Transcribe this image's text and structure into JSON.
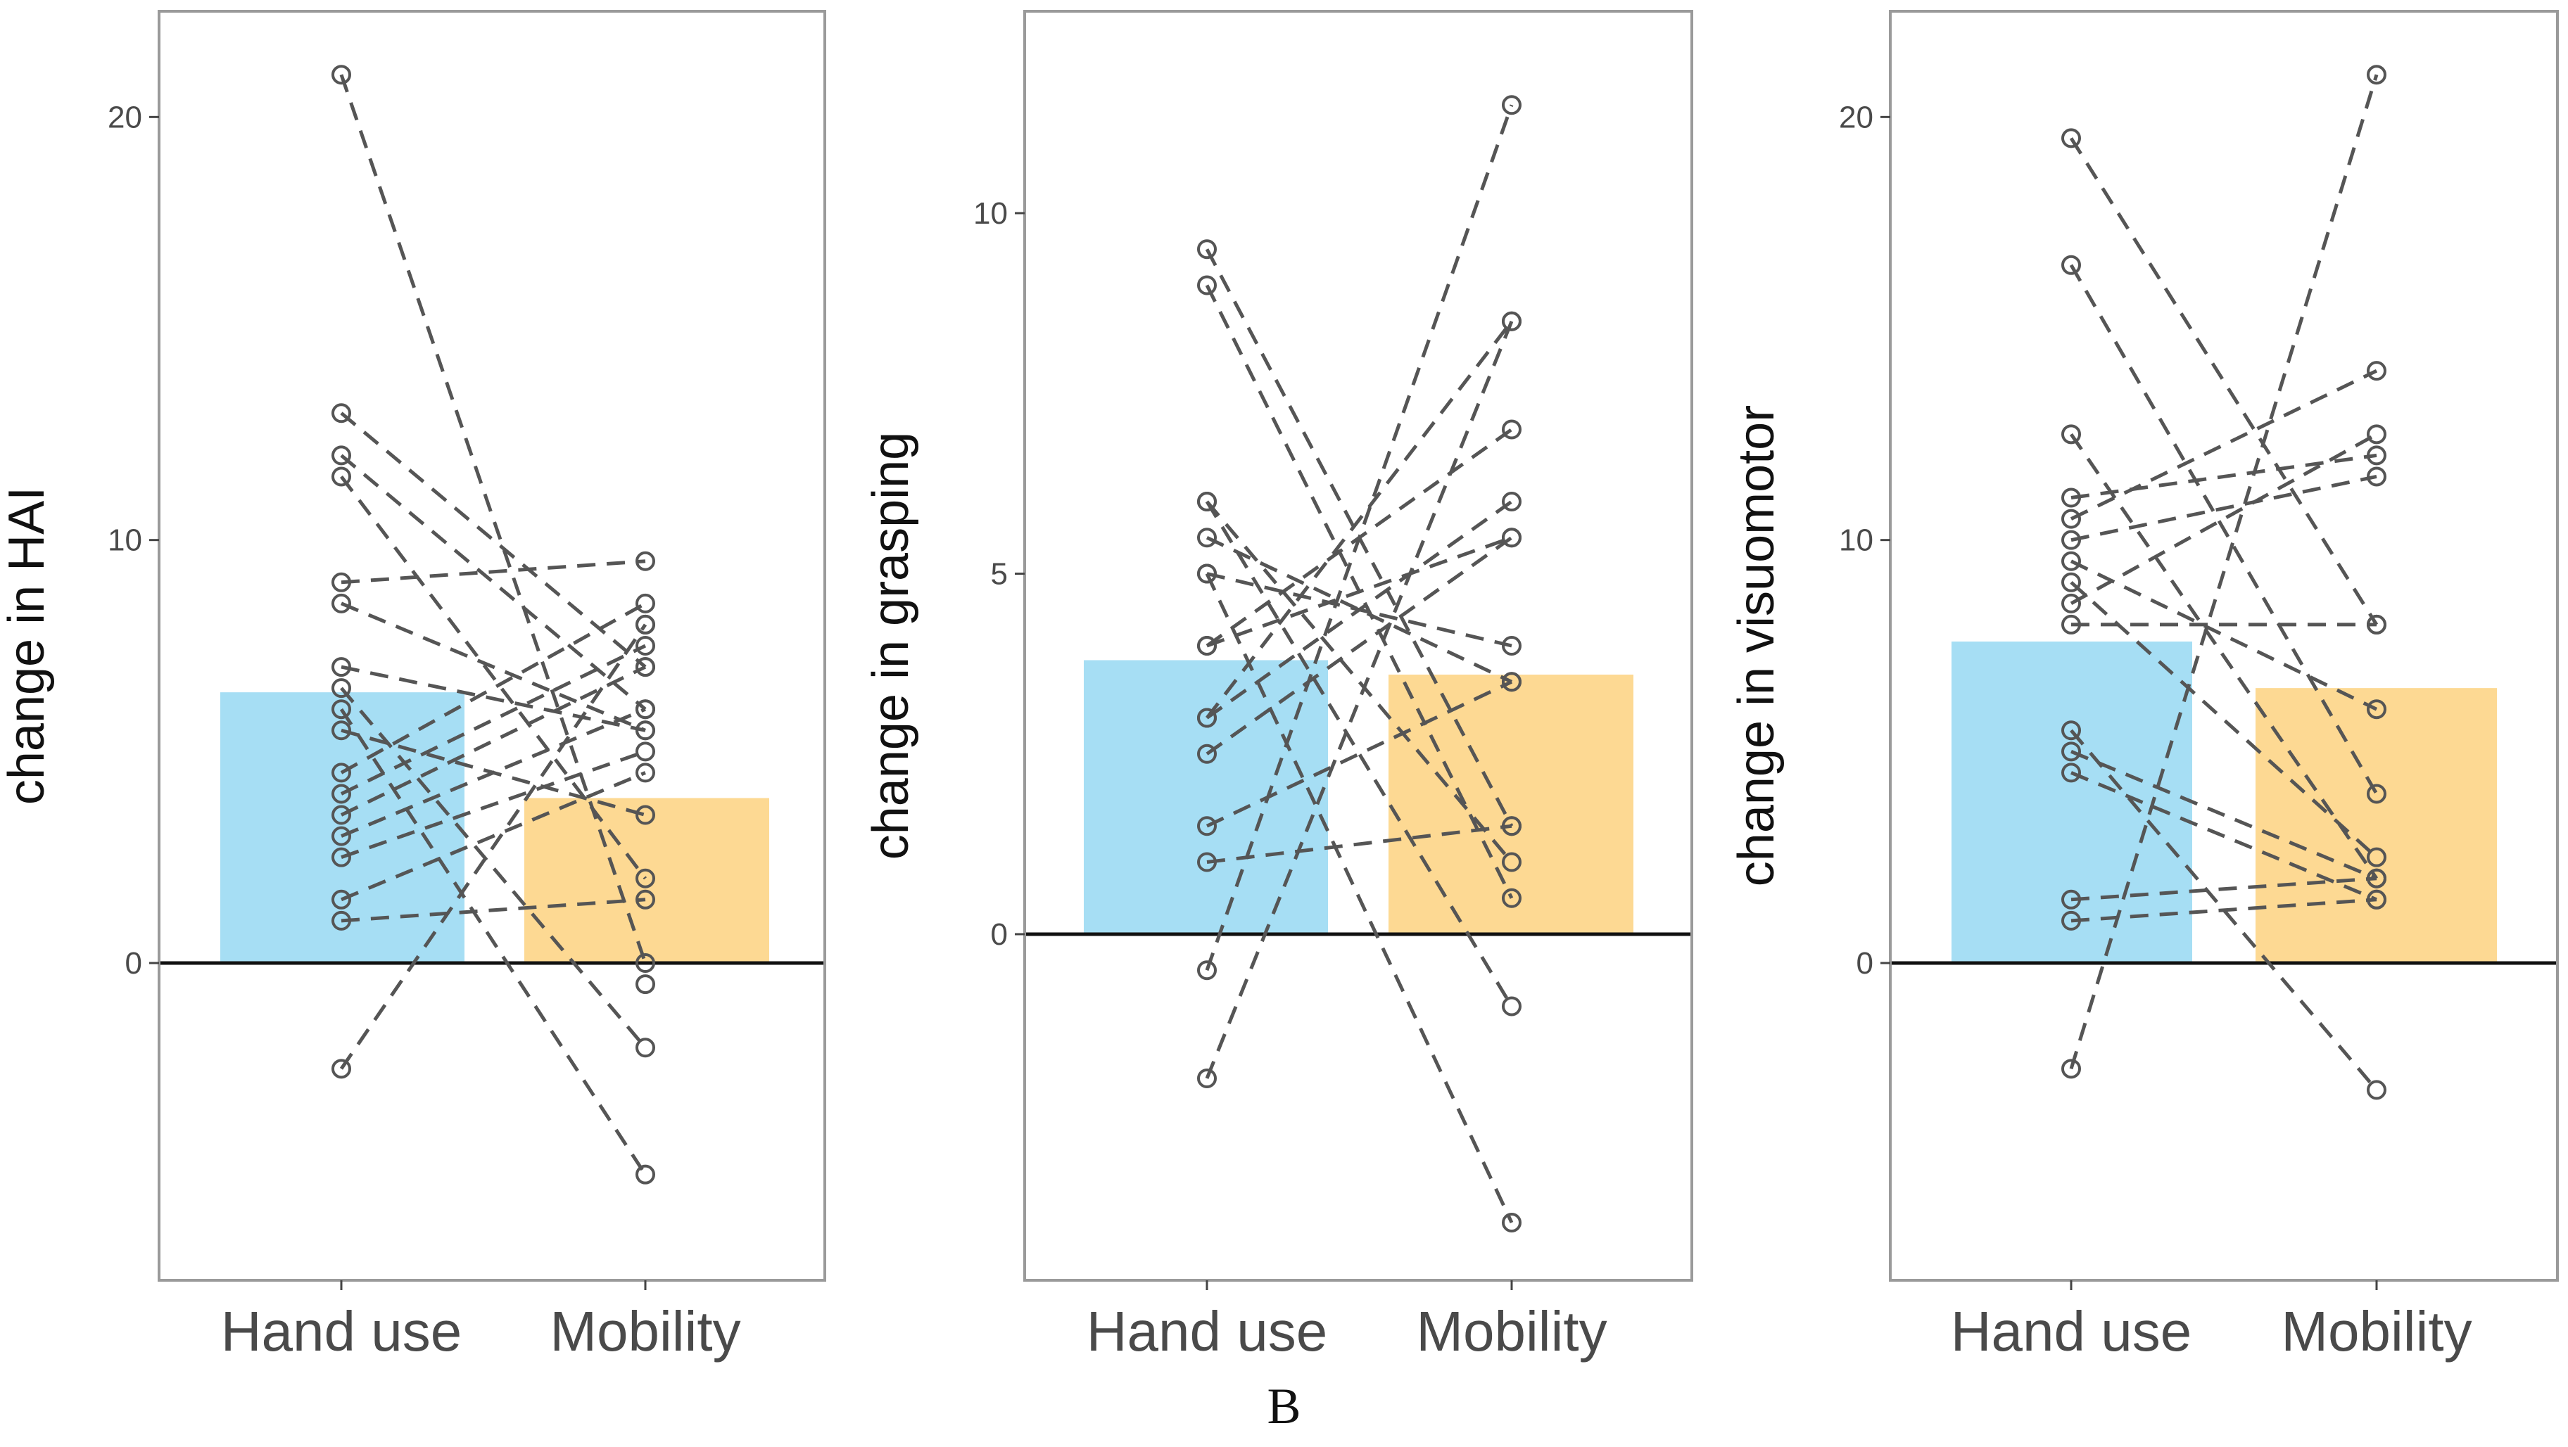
{
  "caption": "B",
  "colors": {
    "bar_hand_use": "#a6def4",
    "bar_mobility": "#fdd993",
    "points": "#555555",
    "zero_line": "#111111"
  },
  "chart_data": [
    {
      "type": "bar",
      "ylabel": "change in HAI",
      "categories": [
        "Hand use",
        "Mobility"
      ],
      "bar_colors": [
        "#a6def4",
        "#fdd993"
      ],
      "values": [
        6.4,
        3.9
      ],
      "ylim": [
        -7.5,
        22.5
      ],
      "yticks": [
        0,
        10,
        20
      ],
      "pairs": [
        [
          21,
          0
        ],
        [
          13,
          7
        ],
        [
          12,
          6
        ],
        [
          11.5,
          2
        ],
        [
          9,
          9.5
        ],
        [
          8.5,
          5.5
        ],
        [
          7,
          5.5
        ],
        [
          6.5,
          -2
        ],
        [
          6,
          -5
        ],
        [
          5.5,
          3.5
        ],
        [
          4.5,
          8.5
        ],
        [
          4,
          7.5
        ],
        [
          3.5,
          7
        ],
        [
          3,
          6
        ],
        [
          2.5,
          5
        ],
        [
          1.5,
          4.5
        ],
        [
          1,
          1.5
        ],
        [
          -2.5,
          8
        ]
      ],
      "extra_mobility_points": [
        -0.5,
        8
      ]
    },
    {
      "type": "bar",
      "ylabel": "change in grasping",
      "categories": [
        "Hand use",
        "Mobility"
      ],
      "bar_colors": [
        "#a6def4",
        "#fdd993"
      ],
      "values": [
        3.8,
        3.6
      ],
      "ylim": [
        -4.8,
        12.8
      ],
      "yticks": [
        0,
        5,
        10
      ],
      "pairs": [
        [
          9.5,
          1.5
        ],
        [
          9,
          0.5
        ],
        [
          6,
          -1
        ],
        [
          6,
          1
        ],
        [
          5.5,
          3.5
        ],
        [
          5,
          4
        ],
        [
          5,
          -4
        ],
        [
          4,
          5.5
        ],
        [
          4,
          7
        ],
        [
          3,
          6
        ],
        [
          3,
          8.5
        ],
        [
          2.5,
          5.5
        ],
        [
          1.5,
          3.5
        ],
        [
          1,
          1.5
        ],
        [
          -0.5,
          11.5
        ],
        [
          -2,
          8.5
        ]
      ]
    },
    {
      "type": "bar",
      "ylabel": "change in visuomotor",
      "categories": [
        "Hand use",
        "Mobility"
      ],
      "bar_colors": [
        "#a6def4",
        "#fdd993"
      ],
      "values": [
        7.6,
        6.5
      ],
      "ylim": [
        -7.5,
        22.5
      ],
      "yticks": [
        0,
        10,
        20
      ],
      "pairs": [
        [
          19.5,
          8
        ],
        [
          16.5,
          4
        ],
        [
          12.5,
          2
        ],
        [
          11,
          12
        ],
        [
          10.5,
          14
        ],
        [
          10,
          11.5
        ],
        [
          9.5,
          6
        ],
        [
          9,
          2.5
        ],
        [
          8.5,
          12.5
        ],
        [
          8,
          8
        ],
        [
          5.5,
          -3
        ],
        [
          5,
          2
        ],
        [
          4.5,
          1.5
        ],
        [
          1.5,
          2
        ],
        [
          1,
          1.5
        ],
        [
          -2.5,
          21
        ]
      ]
    }
  ]
}
